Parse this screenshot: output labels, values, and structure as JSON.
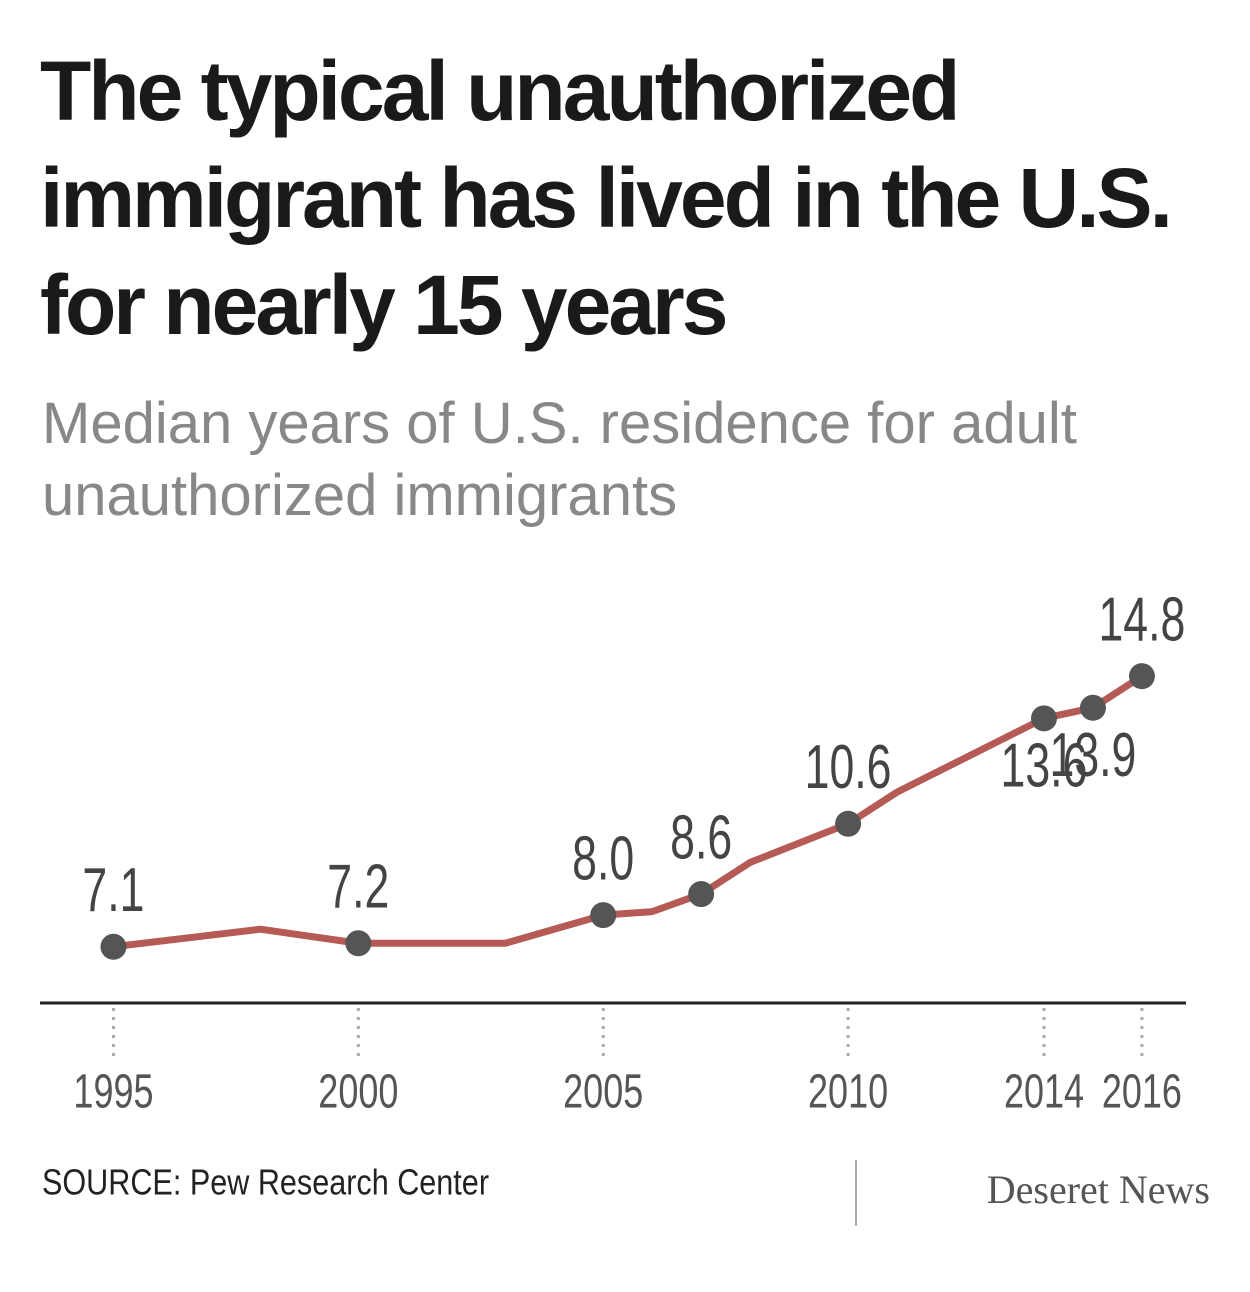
{
  "chart_data": {
    "type": "line",
    "title": "The typical unauthorized immigrant has lived in the U.S. for nearly 15 years",
    "subtitle": "Median years of U.S. residence for adult unauthorized immigrants",
    "x": [
      1995,
      1998,
      2000,
      2003,
      2005,
      2006,
      2007,
      2008,
      2010,
      2011,
      2012,
      2014,
      2015,
      2016
    ],
    "values": [
      7.1,
      7.6,
      7.2,
      7.2,
      8.0,
      8.1,
      8.6,
      9.5,
      10.6,
      11.5,
      12.2,
      13.6,
      13.9,
      14.8
    ],
    "value_labels": [
      "7.1",
      null,
      "7.2",
      null,
      "8.0",
      null,
      "8.6",
      null,
      "10.6",
      null,
      null,
      "13.6",
      "13.9",
      "14.8"
    ],
    "color": "#b55a55",
    "xlim": [
      1993.5,
      2016.9
    ],
    "xticks": [
      1995,
      2000,
      2005,
      2010,
      2014,
      2016
    ],
    "ylim": [
      5.5,
      16
    ],
    "source": "SOURCE: Pew Research Center",
    "brand": "Deseret News"
  }
}
